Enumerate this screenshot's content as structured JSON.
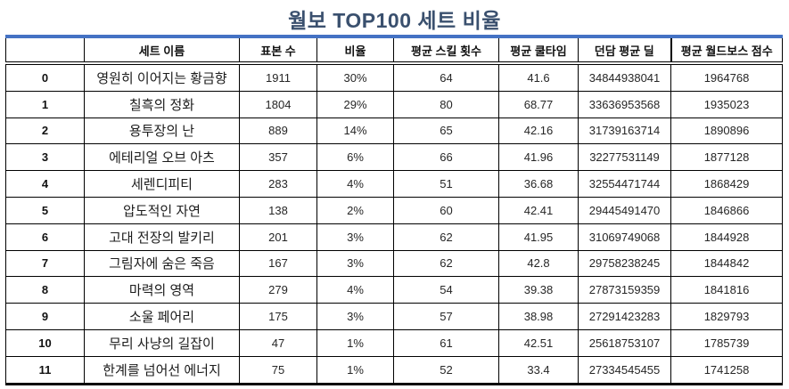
{
  "title": "월보 TOP100 세트 비율",
  "colors": {
    "top_accent_border": "#4472C4",
    "title_text": "#3A506E",
    "grid_lines": "#000000",
    "body_text": "#262626"
  },
  "chart_data": {
    "type": "table",
    "title": "월보 TOP100 세트 비율",
    "columns": [
      "",
      "세트 이름",
      "표본 수",
      "비율",
      "평균 스킬 횟수",
      "평균 쿨타임",
      "던담 평균 딜",
      "평균 월드보스 점수"
    ],
    "rows": [
      [
        "0",
        "영원히 이어지는 황금향",
        "1911",
        "30%",
        "64",
        "41.6",
        "34844938041",
        "1964768"
      ],
      [
        "1",
        "칠흑의 정화",
        "1804",
        "29%",
        "80",
        "68.77",
        "33636953568",
        "1935023"
      ],
      [
        "2",
        "용투장의 난",
        "889",
        "14%",
        "65",
        "42.16",
        "31739163714",
        "1890896"
      ],
      [
        "3",
        "에테리얼 오브 아츠",
        "357",
        "6%",
        "66",
        "41.96",
        "32277531149",
        "1877128"
      ],
      [
        "4",
        "세렌디피티",
        "283",
        "4%",
        "51",
        "36.68",
        "32554471744",
        "1868429"
      ],
      [
        "5",
        "압도적인 자연",
        "138",
        "2%",
        "60",
        "42.41",
        "29445491470",
        "1846866"
      ],
      [
        "6",
        "고대 전장의 발키리",
        "201",
        "3%",
        "62",
        "41.95",
        "31069749068",
        "1844928"
      ],
      [
        "7",
        "그림자에 숨은 죽음",
        "167",
        "3%",
        "62",
        "42.8",
        "29758238245",
        "1844842"
      ],
      [
        "8",
        "마력의 영역",
        "279",
        "4%",
        "54",
        "39.38",
        "27873159359",
        "1841816"
      ],
      [
        "9",
        "소울 페어리",
        "175",
        "3%",
        "57",
        "38.98",
        "27291423283",
        "1829793"
      ],
      [
        "10",
        "무리 사냥의 길잡이",
        "47",
        "1%",
        "61",
        "42.51",
        "25618753107",
        "1785739"
      ],
      [
        "11",
        "한계를 넘어선 에너지",
        "75",
        "1%",
        "52",
        "33.4",
        "27334545455",
        "1741258"
      ]
    ]
  }
}
